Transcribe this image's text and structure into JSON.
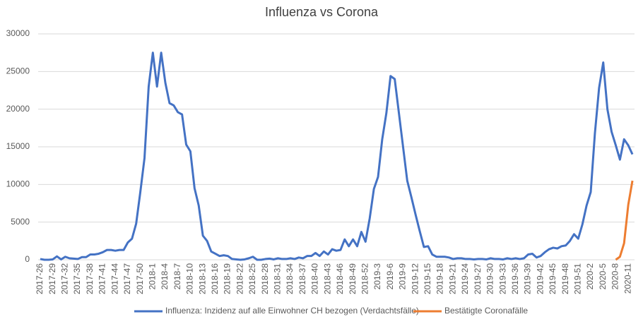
{
  "chart_data": {
    "type": "line",
    "title": "Influenza vs Corona",
    "categories": [
      "2017-26",
      null,
      null,
      "2017-29",
      null,
      null,
      "2017-32",
      null,
      null,
      "2017-35",
      null,
      null,
      "2017-38",
      null,
      null,
      "2017-41",
      null,
      null,
      "2017-44",
      null,
      null,
      "2017-47",
      null,
      null,
      "2017-50",
      null,
      null,
      "2018-1",
      null,
      null,
      "2018-4",
      null,
      null,
      "2018-7",
      null,
      null,
      "2018-10",
      null,
      null,
      "2018-13",
      null,
      null,
      "2018-16",
      null,
      null,
      "2018-19",
      null,
      null,
      "2018-22",
      null,
      null,
      "2018-25",
      null,
      null,
      "2018-28",
      null,
      null,
      "2018-31",
      null,
      null,
      "2018-34",
      null,
      null,
      "2018-37",
      null,
      null,
      "2018-40",
      null,
      null,
      "2018-43",
      null,
      null,
      "2018-46",
      null,
      null,
      "2018-49",
      null,
      null,
      "2018-52",
      null,
      null,
      "2019-3",
      null,
      null,
      "2019-6",
      null,
      null,
      "2019-9",
      null,
      null,
      "2019-12",
      null,
      null,
      "2019-15",
      null,
      null,
      "2019-18",
      null,
      null,
      "2019-21",
      null,
      null,
      "2019-24",
      null,
      null,
      "2019-27",
      null,
      null,
      "2019-30",
      null,
      null,
      "2019-33",
      null,
      null,
      "2019-36",
      null,
      null,
      "2019-39",
      null,
      null,
      "2019-42",
      null,
      null,
      "2019-45",
      null,
      null,
      "2019-48",
      null,
      null,
      "2019-51",
      null,
      null,
      "2020-2",
      null,
      null,
      "2020-5",
      null,
      null,
      "2020-8",
      null,
      null,
      "2020-11",
      null
    ],
    "series": [
      {
        "name": "Influenza: Inzidenz auf alle Einwohner CH bezogen (Verdachtsfälle)",
        "color": "#4472c4",
        "values": [
          100,
          0,
          0,
          50,
          450,
          50,
          400,
          200,
          150,
          100,
          350,
          350,
          700,
          700,
          800,
          1000,
          1300,
          1300,
          1200,
          1300,
          1300,
          2300,
          2800,
          4800,
          9000,
          13500,
          23000,
          27500,
          23000,
          27500,
          23500,
          20800,
          20500,
          19600,
          19300,
          15300,
          14400,
          9500,
          7200,
          3200,
          2500,
          1100,
          800,
          500,
          600,
          500,
          100,
          50,
          0,
          50,
          200,
          400,
          0,
          0,
          100,
          150,
          50,
          200,
          100,
          100,
          200,
          100,
          300,
          200,
          500,
          500,
          900,
          500,
          1100,
          700,
          1400,
          1200,
          1300,
          2700,
          1800,
          2700,
          1800,
          3700,
          2400,
          5500,
          9400,
          11000,
          16000,
          19500,
          24400,
          24000,
          19500,
          15000,
          10500,
          8300,
          6000,
          3800,
          1700,
          1800,
          700,
          400,
          400,
          400,
          300,
          100,
          200,
          200,
          100,
          100,
          50,
          100,
          100,
          50,
          200,
          100,
          100,
          50,
          200,
          100,
          200,
          100,
          200,
          700,
          800,
          300,
          500,
          1000,
          1400,
          1600,
          1500,
          1800,
          1900,
          2500,
          3400,
          2800,
          4700,
          7200,
          9000,
          16800,
          22800,
          26200,
          20000,
          17000,
          15200,
          13300,
          16000,
          15200,
          14000
        ]
      },
      {
        "name": "Bestätigte Coronafälle",
        "color": "#ed7d31",
        "values": [
          null,
          null,
          null,
          null,
          null,
          null,
          null,
          null,
          null,
          null,
          null,
          null,
          null,
          null,
          null,
          null,
          null,
          null,
          null,
          null,
          null,
          null,
          null,
          null,
          null,
          null,
          null,
          null,
          null,
          null,
          null,
          null,
          null,
          null,
          null,
          null,
          null,
          null,
          null,
          null,
          null,
          null,
          null,
          null,
          null,
          null,
          null,
          null,
          null,
          null,
          null,
          null,
          null,
          null,
          null,
          null,
          null,
          null,
          null,
          null,
          null,
          null,
          null,
          null,
          null,
          null,
          null,
          null,
          null,
          null,
          null,
          null,
          null,
          null,
          null,
          null,
          null,
          null,
          null,
          null,
          null,
          null,
          null,
          null,
          null,
          null,
          null,
          null,
          null,
          null,
          null,
          null,
          null,
          null,
          null,
          null,
          null,
          null,
          null,
          null,
          null,
          null,
          null,
          null,
          null,
          null,
          null,
          null,
          null,
          null,
          null,
          null,
          null,
          null,
          null,
          null,
          null,
          null,
          null,
          null,
          null,
          null,
          null,
          null,
          null,
          null,
          null,
          null,
          null,
          null,
          null,
          null,
          null,
          null,
          null,
          null,
          null,
          null,
          0,
          400,
          2200,
          7300,
          10500
        ]
      }
    ],
    "ylim": [
      0,
      30000
    ],
    "yticks": [
      0,
      5000,
      10000,
      15000,
      20000,
      25000,
      30000
    ],
    "grid": true
  }
}
